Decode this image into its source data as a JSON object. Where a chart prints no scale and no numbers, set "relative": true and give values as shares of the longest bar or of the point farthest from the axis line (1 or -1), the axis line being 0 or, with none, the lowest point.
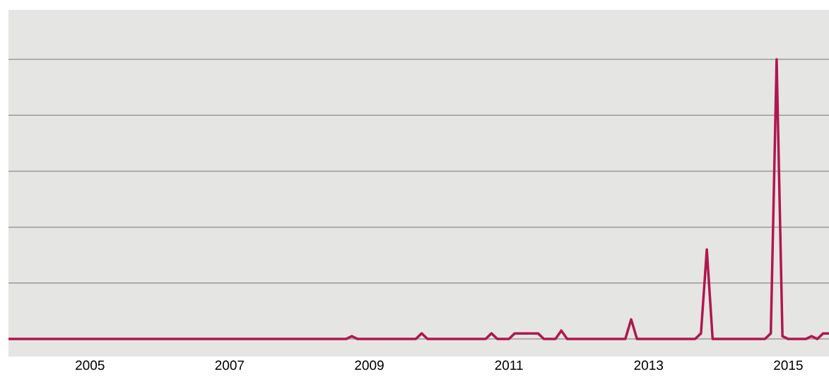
{
  "chart_data": {
    "type": "line",
    "relative": true,
    "grid": "y",
    "tick_labels": "x",
    "line_style": "solid",
    "color": "#b0174f",
    "xlim": [
      "2003-11",
      "2015-08"
    ],
    "xticks": [
      "2005",
      "2007",
      "2009",
      "2011",
      "2013",
      "2015"
    ],
    "x": [
      "2003-11",
      "2008-09",
      "2008-10",
      "2008-11",
      "2009-09",
      "2009-10",
      "2009-11",
      "2010-09",
      "2010-10",
      "2010-11",
      "2011-01",
      "2011-02",
      "2011-06",
      "2011-07",
      "2011-09",
      "2011-10",
      "2011-11",
      "2012-09",
      "2012-10",
      "2012-11",
      "2013-09",
      "2013-10",
      "2013-11",
      "2013-12",
      "2014-09",
      "2014-10",
      "2014-11",
      "2014-12",
      "2015-01",
      "2015-04",
      "2015-05",
      "2015-06",
      "2015-07",
      "2015-08"
    ],
    "values": [
      0,
      0,
      0.01,
      0,
      0,
      0.02,
      0,
      0,
      0.02,
      0,
      0,
      0.02,
      0.02,
      0,
      0,
      0.03,
      0,
      0,
      0.07,
      0,
      0,
      0.02,
      0.32,
      0,
      0,
      0.02,
      1,
      0.01,
      0,
      0,
      0.01,
      0,
      0.02,
      0.02
    ]
  }
}
